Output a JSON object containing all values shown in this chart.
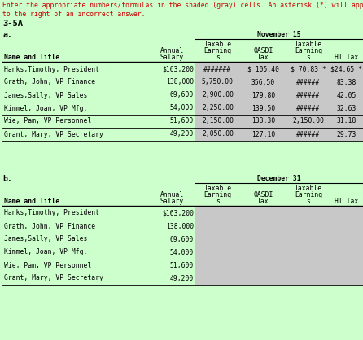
{
  "instruction_line1": "Enter the appropriate numbers/formulas in the shaded (gray) cells. An asterisk (*) will appear",
  "instruction_line2": "to the right of an incorrect answer.",
  "chapter_label": "3-5A",
  "section_a_label": "a.",
  "section_b_label": "b.",
  "period_a": "November 15",
  "period_b": "December 31",
  "col_headers_line1": [
    "",
    "",
    "Taxable",
    "OASDI",
    "Taxable",
    ""
  ],
  "col_headers_line2": [
    "",
    "Annual",
    "Earning",
    "Tax",
    "Earning",
    "HI Tax"
  ],
  "col_headers_line3": [
    "Name and Title",
    "Salary",
    "s",
    "",
    "s",
    ""
  ],
  "rows_a": [
    [
      "Hanks,Timothy, President",
      "$163,200",
      "#######",
      "$ 105.40",
      "$ 70.83 *",
      "$24.65 *"
    ],
    [
      "Grath, John, VP Finance",
      "138,000",
      "5,750.00",
      "356.50",
      "######",
      "83.38"
    ],
    [
      "James,Sally, VP Sales",
      "69,600",
      "2,900.00",
      "179.80",
      "######",
      "42.05"
    ],
    [
      "Kimmel, Joan, VP Mfg.",
      "54,000",
      "2,250.00",
      "139.50",
      "######",
      "32.63"
    ],
    [
      "Wie, Pam, VP Personnel",
      "51,600",
      "2,150.00",
      "133.30",
      "2,150.00",
      "31.18"
    ],
    [
      "Grant, Mary, VP Secretary",
      "49,200",
      "2,050.00",
      "127.10",
      "######",
      "29.73"
    ]
  ],
  "rows_b": [
    [
      "Hanks,Timothy, President",
      "$163,200"
    ],
    [
      "Grath, John, VP Finance",
      "138,000"
    ],
    [
      "James,Sally, VP Sales",
      "69,600"
    ],
    [
      "Kimmel, Joan, VP Mfg.",
      "54,000"
    ],
    [
      "Wie, Pam, VP Personnel",
      "51,600"
    ],
    [
      "Grant, Mary, VP Secretary",
      "49,200"
    ]
  ],
  "bg_color": "#ccffcc",
  "cell_gray": "#c8c8c8",
  "instruction_color": "#cc0000"
}
